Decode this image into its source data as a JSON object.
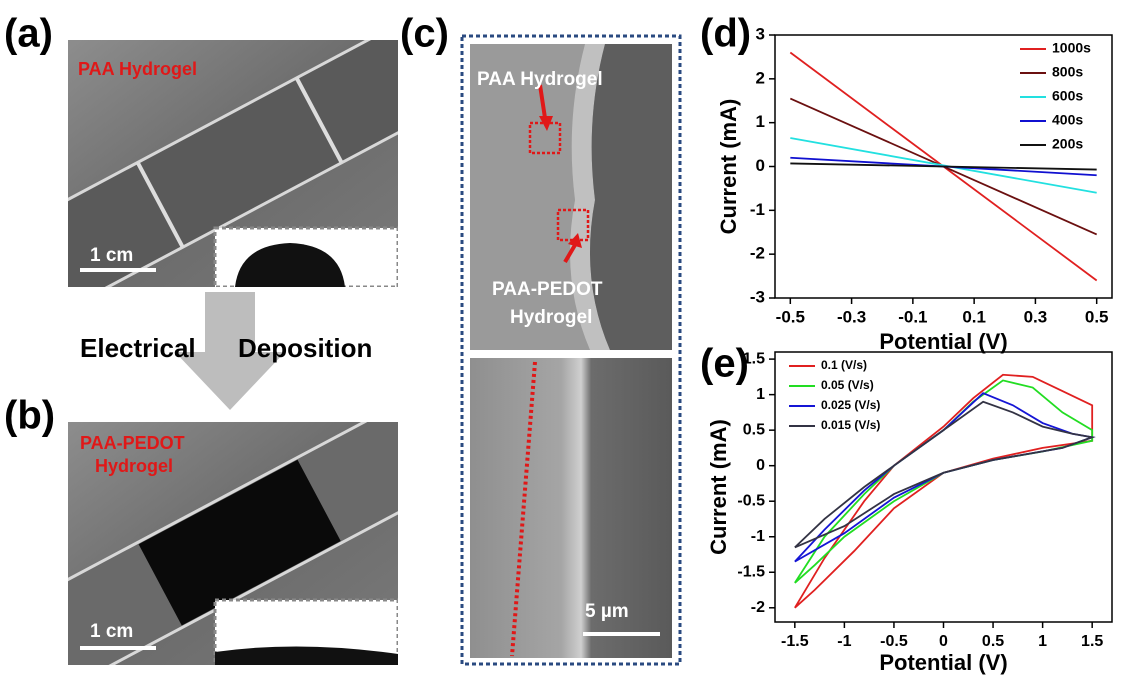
{
  "panels": {
    "a": {
      "label": "(a)",
      "title": "PAA Hydrogel",
      "scale": "1 cm"
    },
    "arrow": {
      "left": "Electrical",
      "right": "Deposition"
    },
    "b": {
      "label": "(b)",
      "title_line1": "PAA-PEDOT",
      "title_line2": "Hydrogel",
      "scale": "1 cm"
    },
    "c": {
      "label": "(c)",
      "top_annotation": "PAA Hydrogel",
      "bottom_annotation_line1": "PAA-PEDOT",
      "bottom_annotation_line2": "Hydrogel",
      "scale": "5 µm"
    },
    "d": {
      "label": "(d)"
    },
    "e": {
      "label": "(e)"
    }
  },
  "chart_data": [
    {
      "type": "line",
      "x_label": "Potential (V)",
      "y_label": "Current (mA)",
      "x": [
        -0.5,
        0.5
      ],
      "xlim": [
        -0.55,
        0.55
      ],
      "xticks": [
        -0.5,
        -0.3,
        -0.1,
        0.1,
        0.3,
        0.5
      ],
      "ylim": [
        -3,
        3
      ],
      "yticks": [
        -3,
        -2,
        -1,
        0,
        1,
        2,
        3
      ],
      "legend": "upper right",
      "series": [
        {
          "name": "1000s",
          "color": "#e02020",
          "values": [
            2.6,
            -2.6
          ]
        },
        {
          "name": "800s",
          "color": "#6b1010",
          "values": [
            1.55,
            -1.55
          ]
        },
        {
          "name": "600s",
          "color": "#22e0e0",
          "values": [
            0.65,
            -0.6
          ]
        },
        {
          "name": "400s",
          "color": "#1010d0",
          "values": [
            0.2,
            -0.2
          ]
        },
        {
          "name": "200s",
          "color": "#111111",
          "values": [
            0.07,
            -0.07
          ]
        }
      ]
    },
    {
      "type": "line",
      "x_label": "Potential (V)",
      "y_label": "Current (mA)",
      "xlim": [
        -1.7,
        1.7
      ],
      "xticks": [
        -1.5,
        -1,
        -0.5,
        0,
        0.5,
        1,
        1.5
      ],
      "ylim": [
        -2.2,
        1.6
      ],
      "yticks": [
        -2,
        -1.5,
        -1,
        -0.5,
        0,
        0.5,
        1,
        1.5
      ],
      "legend": "upper left",
      "series": [
        {
          "name": "0.1 (V/s)",
          "color": "#e02020",
          "x": [
            -1.5,
            -1.2,
            -0.8,
            -0.5,
            0,
            0.3,
            0.6,
            0.9,
            1.2,
            1.5,
            1.5,
            1.0,
            0.5,
            0,
            -0.5,
            -0.9,
            -1.3,
            -1.5
          ],
          "values": [
            -2.0,
            -1.3,
            -0.5,
            0.0,
            0.55,
            0.95,
            1.28,
            1.25,
            1.05,
            0.85,
            0.35,
            0.25,
            0.1,
            -0.1,
            -0.6,
            -1.2,
            -1.75,
            -2.0
          ]
        },
        {
          "name": "0.05 (V/s)",
          "color": "#22dd22",
          "x": [
            -1.5,
            -1.2,
            -0.8,
            -0.5,
            0,
            0.3,
            0.6,
            0.9,
            1.2,
            1.5,
            1.5,
            1.0,
            0.5,
            0,
            -0.5,
            -1.0,
            -1.3,
            -1.5
          ],
          "values": [
            -1.65,
            -1.0,
            -0.4,
            0.0,
            0.5,
            0.9,
            1.2,
            1.1,
            0.75,
            0.5,
            0.35,
            0.2,
            0.08,
            -0.1,
            -0.5,
            -1.0,
            -1.4,
            -1.65
          ]
        },
        {
          "name": "0.025 (V/s)",
          "color": "#1515d5",
          "x": [
            -1.5,
            -1.2,
            -0.8,
            -0.5,
            0,
            0.4,
            0.7,
            1.0,
            1.3,
            1.5,
            1.2,
            0.5,
            0,
            -0.5,
            -1.0,
            -1.5
          ],
          "values": [
            -1.35,
            -0.9,
            -0.35,
            0.0,
            0.5,
            1.02,
            0.85,
            0.6,
            0.45,
            0.4,
            0.25,
            0.08,
            -0.1,
            -0.45,
            -0.95,
            -1.35
          ]
        },
        {
          "name": "0.015 (V/s)",
          "color": "#333344",
          "x": [
            -1.5,
            -1.2,
            -0.8,
            -0.5,
            0,
            0.4,
            0.7,
            1.0,
            1.3,
            1.5,
            1.2,
            0.5,
            0,
            -0.5,
            -1.0,
            -1.5
          ],
          "values": [
            -1.15,
            -0.75,
            -0.3,
            0.0,
            0.5,
            0.9,
            0.75,
            0.55,
            0.45,
            0.4,
            0.25,
            0.08,
            -0.1,
            -0.4,
            -0.85,
            -1.15
          ]
        }
      ]
    }
  ]
}
